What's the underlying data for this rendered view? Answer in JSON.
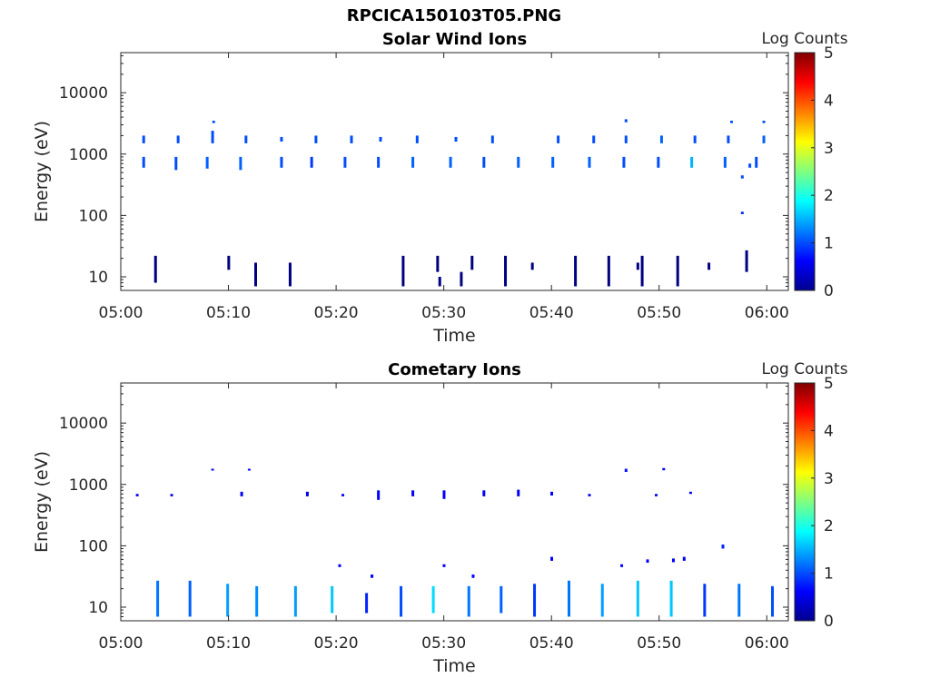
{
  "figure_title": "RPCICA150103T05.PNG",
  "chart_data": [
    {
      "type": "heatmap",
      "title": "Solar Wind Ions",
      "xlabel": "Time",
      "ylabel": "Energy (eV)",
      "x_ticks": [
        "05:00",
        "05:10",
        "05:20",
        "05:30",
        "05:40",
        "05:50",
        "06:00"
      ],
      "x_range_min": [
        0,
        62
      ],
      "y_scale": "log",
      "y_ticks": [
        10,
        100,
        1000,
        10000
      ],
      "y_tick_labels": [
        "10",
        "100",
        "1000",
        "10000"
      ],
      "y_range": [
        6,
        45000
      ],
      "colorbar": {
        "label": "Log Counts",
        "range": [
          0,
          5
        ],
        "ticks": [
          "0",
          "1",
          "2",
          "3",
          "4",
          "5"
        ],
        "colormap": "jet"
      },
      "grid": false,
      "cells": [
        [
          2.0,
          600,
          900,
          1.0
        ],
        [
          2.0,
          1500,
          2000,
          1.0
        ],
        [
          5.0,
          550,
          900,
          1.0
        ],
        [
          5.2,
          1500,
          2000,
          1.0
        ],
        [
          7.9,
          580,
          900,
          1.1
        ],
        [
          8.4,
          1500,
          2400,
          1.0
        ],
        [
          8.5,
          3200,
          3500,
          1.0
        ],
        [
          11.0,
          550,
          900,
          1.1
        ],
        [
          11.5,
          1500,
          2000,
          1.0
        ],
        [
          14.8,
          600,
          900,
          1.0
        ],
        [
          14.8,
          1600,
          1900,
          1.0
        ],
        [
          17.6,
          600,
          900,
          0.9
        ],
        [
          18.0,
          1500,
          2000,
          1.0
        ],
        [
          20.7,
          600,
          900,
          1.0
        ],
        [
          21.3,
          1500,
          2000,
          1.0
        ],
        [
          23.8,
          600,
          900,
          1.0
        ],
        [
          24.0,
          1600,
          1900,
          1.0
        ],
        [
          27.0,
          600,
          900,
          1.1
        ],
        [
          27.4,
          1500,
          2000,
          1.0
        ],
        [
          30.5,
          600,
          900,
          1.1
        ],
        [
          31.0,
          1600,
          1900,
          1.0
        ],
        [
          33.6,
          600,
          900,
          1.0
        ],
        [
          34.4,
          1500,
          2000,
          1.0
        ],
        [
          36.8,
          600,
          900,
          1.1
        ],
        [
          40.0,
          600,
          900,
          1.1
        ],
        [
          40.5,
          1500,
          2000,
          1.0
        ],
        [
          43.4,
          600,
          900,
          1.1
        ],
        [
          43.8,
          1500,
          2000,
          1.0
        ],
        [
          46.6,
          600,
          900,
          1.0
        ],
        [
          46.8,
          1500,
          2000,
          1.0
        ],
        [
          46.8,
          3300,
          3700,
          1.0
        ],
        [
          49.8,
          600,
          900,
          1.0
        ],
        [
          50.1,
          1500,
          2000,
          1.1
        ],
        [
          52.9,
          600,
          900,
          1.5
        ],
        [
          53.2,
          1500,
          2000,
          1.0
        ],
        [
          56.0,
          600,
          900,
          1.1
        ],
        [
          56.3,
          1500,
          2000,
          1.0
        ],
        [
          56.6,
          3200,
          3500,
          1.0
        ],
        [
          57.6,
          400,
          450,
          1.0
        ],
        [
          57.6,
          105,
          115,
          0.8
        ],
        [
          58.3,
          600,
          700,
          1.0
        ],
        [
          58.9,
          600,
          900,
          1.0
        ],
        [
          59.6,
          1500,
          2000,
          1.1
        ],
        [
          59.6,
          3200,
          3500,
          1.0
        ],
        [
          3.1,
          8,
          22,
          0.0
        ],
        [
          9.9,
          13,
          22,
          0.0
        ],
        [
          12.4,
          7,
          17,
          0.0
        ],
        [
          15.6,
          7,
          17,
          0.0
        ],
        [
          26.1,
          7,
          22,
          0.0
        ],
        [
          29.3,
          12,
          22,
          0.0
        ],
        [
          29.5,
          7,
          10,
          0.0
        ],
        [
          31.5,
          7,
          12,
          0.0
        ],
        [
          32.5,
          13,
          22,
          0.0
        ],
        [
          35.6,
          7,
          22,
          0.0
        ],
        [
          38.1,
          13,
          17,
          0.0
        ],
        [
          42.1,
          7,
          22,
          0.0
        ],
        [
          45.2,
          7,
          22,
          0.0
        ],
        [
          47.9,
          13,
          17,
          0.0
        ],
        [
          48.3,
          7,
          22,
          0.0
        ],
        [
          51.6,
          7,
          22,
          0.0
        ],
        [
          54.5,
          13,
          17,
          0.0
        ],
        [
          58.0,
          12,
          27,
          0.0
        ]
      ]
    },
    {
      "type": "heatmap",
      "title": "Cometary Ions",
      "xlabel": "Time",
      "ylabel": "Energy (eV)",
      "x_ticks": [
        "05:00",
        "05:10",
        "05:20",
        "05:30",
        "05:40",
        "05:50",
        "06:00"
      ],
      "x_range_min": [
        0,
        62
      ],
      "y_scale": "log",
      "y_ticks": [
        10,
        100,
        1000,
        10000
      ],
      "y_tick_labels": [
        "10",
        "100",
        "1000",
        "10000"
      ],
      "y_range": [
        6,
        45000
      ],
      "colorbar": {
        "label": "Log Counts",
        "range": [
          0,
          5
        ],
        "ticks": [
          "0",
          "1",
          "2",
          "3",
          "4",
          "5"
        ],
        "colormap": "jet"
      },
      "grid": false,
      "cells": [
        [
          1.4,
          640,
          700,
          0.5
        ],
        [
          4.6,
          640,
          700,
          0.5
        ],
        [
          8.4,
          1700,
          1800,
          0.6
        ],
        [
          11.1,
          640,
          760,
          0.6
        ],
        [
          11.8,
          1700,
          1800,
          0.6
        ],
        [
          17.2,
          640,
          760,
          0.5
        ],
        [
          20.5,
          640,
          700,
          0.5
        ],
        [
          23.8,
          560,
          800,
          0.6
        ],
        [
          27.0,
          640,
          800,
          0.6
        ],
        [
          29.9,
          580,
          800,
          0.6
        ],
        [
          33.6,
          640,
          800,
          0.6
        ],
        [
          36.8,
          640,
          820,
          0.6
        ],
        [
          39.9,
          660,
          760,
          0.6
        ],
        [
          43.4,
          640,
          700,
          0.5
        ],
        [
          46.8,
          1600,
          1800,
          0.7
        ],
        [
          49.6,
          640,
          700,
          0.5
        ],
        [
          50.3,
          1700,
          1850,
          0.6
        ],
        [
          52.8,
          700,
          760,
          0.5
        ],
        [
          20.2,
          45,
          50,
          0.6
        ],
        [
          23.2,
          30,
          34,
          0.6
        ],
        [
          29.9,
          45,
          50,
          0.6
        ],
        [
          32.6,
          30,
          34,
          0.6
        ],
        [
          39.9,
          57,
          66,
          0.6
        ],
        [
          46.4,
          45,
          50,
          0.6
        ],
        [
          48.8,
          53,
          60,
          0.6
        ],
        [
          51.2,
          54,
          62,
          0.6
        ],
        [
          52.2,
          57,
          66,
          0.6
        ],
        [
          55.8,
          90,
          105,
          0.8
        ],
        [
          3.3,
          7,
          27,
          1.2
        ],
        [
          6.3,
          7,
          27,
          1.1
        ],
        [
          9.8,
          7,
          24,
          1.4
        ],
        [
          12.5,
          7,
          22,
          1.3
        ],
        [
          16.1,
          7,
          22,
          1.4
        ],
        [
          19.5,
          8,
          22,
          1.6
        ],
        [
          22.7,
          8,
          17,
          0.8
        ],
        [
          25.9,
          7,
          22,
          1.0
        ],
        [
          28.9,
          8,
          22,
          1.7
        ],
        [
          32.2,
          7,
          22,
          1.2
        ],
        [
          35.2,
          8,
          22,
          1.1
        ],
        [
          38.3,
          7,
          24,
          0.9
        ],
        [
          41.5,
          7,
          27,
          1.2
        ],
        [
          44.6,
          7,
          24,
          1.4
        ],
        [
          47.9,
          7,
          27,
          1.6
        ],
        [
          51.0,
          7,
          27,
          1.6
        ],
        [
          54.1,
          7,
          24,
          0.9
        ],
        [
          57.3,
          7,
          24,
          1.2
        ],
        [
          60.4,
          7,
          22,
          1.0
        ]
      ]
    }
  ]
}
